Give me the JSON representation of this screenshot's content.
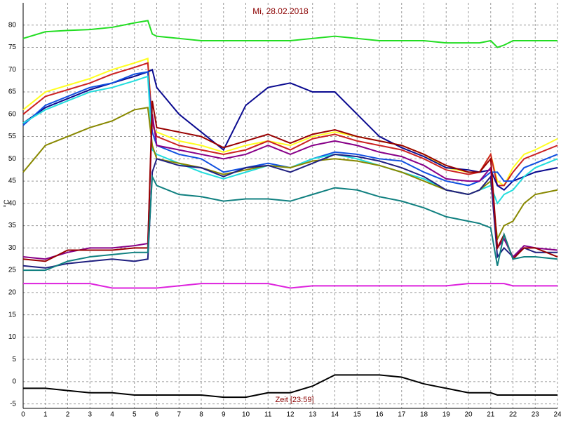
{
  "chart_data": {
    "type": "line",
    "title": "Mi, 28.02.2018",
    "x_label": "Zeit [23:59]",
    "y_label": "°C",
    "grid": true,
    "xlim": [
      0,
      24
    ],
    "xticks": [
      0,
      1,
      2,
      3,
      4,
      5,
      6,
      7,
      8,
      9,
      10,
      11,
      12,
      13,
      14,
      15,
      16,
      17,
      18,
      19,
      20,
      21,
      22,
      23,
      24
    ],
    "ylim": [
      -6,
      85
    ],
    "yticks": [
      -5,
      0,
      5,
      10,
      15,
      20,
      25,
      30,
      35,
      40,
      45,
      50,
      55,
      60,
      65,
      70,
      75,
      80
    ],
    "x": [
      0,
      1,
      2,
      3,
      4,
      5,
      5.6,
      5.8,
      6,
      7,
      8,
      9,
      10,
      11,
      12,
      13,
      14,
      15,
      16,
      17,
      18,
      19,
      20,
      20.5,
      21,
      21.3,
      21.6,
      22,
      22.5,
      23,
      24
    ],
    "series": [
      {
        "color": "#22dd22",
        "values": [
          77,
          78.5,
          78.8,
          79,
          79.5,
          80.5,
          81,
          78,
          77.5,
          77,
          76.5,
          76.5,
          76.5,
          76.5,
          76.5,
          77,
          77.5,
          77,
          76.5,
          76.5,
          76.5,
          76,
          76,
          76,
          76.5,
          75,
          75.5,
          76.5,
          76.5,
          76.5,
          76.5
        ]
      },
      {
        "color": "#ffff22",
        "values": [
          61,
          65,
          66.5,
          68,
          70,
          71.5,
          72.5,
          57,
          56,
          54,
          53,
          51.5,
          53,
          54,
          53,
          55,
          56,
          55,
          54,
          53,
          51,
          48,
          47,
          47,
          51,
          45,
          44,
          48,
          51,
          52,
          54.5
        ]
      },
      {
        "color": "#cc2222",
        "values": [
          60,
          64,
          65.5,
          67,
          69,
          70.5,
          71.5,
          58,
          55,
          53,
          52,
          51,
          52,
          54,
          52,
          54.5,
          55.5,
          54,
          53,
          52,
          50,
          47.5,
          46.5,
          47,
          51,
          44,
          44,
          47,
          50,
          51,
          53
        ]
      },
      {
        "color": "#0a0a90",
        "values": [
          58,
          61.5,
          63.5,
          65.5,
          67,
          68.5,
          69.5,
          70,
          66,
          60,
          56,
          52,
          62,
          66,
          67,
          65,
          65,
          60,
          55,
          52.5,
          50.5,
          48,
          47.5,
          47,
          47.5,
          44,
          43,
          45,
          46,
          47,
          48
        ]
      },
      {
        "color": "#1050e0",
        "values": [
          57.5,
          62,
          64,
          66,
          67,
          69,
          69.5,
          56,
          53,
          51,
          50,
          47,
          48,
          49,
          48,
          50,
          51.5,
          51,
          50,
          49.5,
          47,
          45,
          44,
          45,
          47,
          47,
          45,
          45,
          48,
          49,
          51
        ]
      },
      {
        "color": "#22dddd",
        "values": [
          58,
          61,
          63,
          65,
          66,
          67.5,
          68.5,
          52,
          51,
          49,
          47,
          45.5,
          47,
          48.5,
          48,
          50,
          51,
          50,
          48.5,
          47,
          45.5,
          43,
          42,
          43,
          44,
          40,
          42,
          43,
          46,
          48,
          50
        ]
      },
      {
        "color": "#888800",
        "values": [
          47,
          53,
          55,
          57,
          58.5,
          61,
          61.5,
          53,
          50,
          49,
          48,
          46.5,
          47.5,
          48.5,
          48,
          49.5,
          50,
          49.5,
          48.5,
          47,
          45,
          43,
          42,
          43,
          45,
          32,
          35,
          36,
          40,
          42,
          43
        ]
      },
      {
        "color": "#202080",
        "values": [
          26,
          25.5,
          26.5,
          27,
          27.5,
          27,
          27.5,
          47,
          50,
          48.5,
          48,
          46,
          48,
          48.5,
          47,
          49,
          51,
          50.5,
          49.5,
          48,
          46,
          43,
          42,
          43,
          46,
          28,
          30,
          28,
          30,
          29,
          29
        ]
      },
      {
        "color": "#880088",
        "values": [
          28,
          27.5,
          29,
          30,
          30,
          30.5,
          31,
          60,
          53,
          52,
          51,
          50,
          51,
          53,
          51,
          53,
          54,
          53,
          51.5,
          50.5,
          48.5,
          45.5,
          45,
          45,
          48,
          30,
          32,
          28,
          30.5,
          30,
          29.5
        ]
      },
      {
        "color": "#990000",
        "values": [
          27.5,
          27,
          29.5,
          29.5,
          29.5,
          30,
          30,
          63,
          57,
          56,
          55,
          52.5,
          54,
          55.5,
          53.5,
          55.5,
          56.5,
          55,
          54,
          53,
          51,
          48.5,
          47,
          47,
          50,
          30,
          33,
          27.5,
          30,
          30,
          28
        ]
      },
      {
        "color": "#108080",
        "values": [
          25,
          25,
          27,
          28,
          28.5,
          29,
          29,
          46,
          44,
          42,
          41.5,
          40.5,
          41,
          41,
          40.5,
          42,
          43.5,
          43,
          41.5,
          40.5,
          39,
          37,
          36,
          35.5,
          34.5,
          26,
          33,
          27.5,
          28,
          28,
          27.5
        ]
      },
      {
        "color": "#dd22dd",
        "values": [
          22,
          22,
          22,
          22,
          21,
          21,
          21,
          21,
          21,
          21.5,
          22,
          22,
          22,
          22,
          21,
          21.5,
          21.5,
          21.5,
          21.5,
          21.5,
          21.5,
          21.5,
          22,
          22,
          22,
          22,
          22,
          21.5,
          21.5,
          21.5,
          21.5
        ]
      },
      {
        "color": "#000000",
        "values": [
          -1.5,
          -1.5,
          -2,
          -2.5,
          -2.5,
          -3,
          -3,
          -3,
          -3,
          -3,
          -3,
          -3.5,
          -3.5,
          -2.5,
          -2.5,
          -1,
          1.5,
          1.5,
          1.5,
          1,
          -0.5,
          -1.5,
          -2.5,
          -2.5,
          -2.5,
          -3,
          -3,
          -3,
          -3,
          -3,
          -3
        ]
      }
    ]
  }
}
